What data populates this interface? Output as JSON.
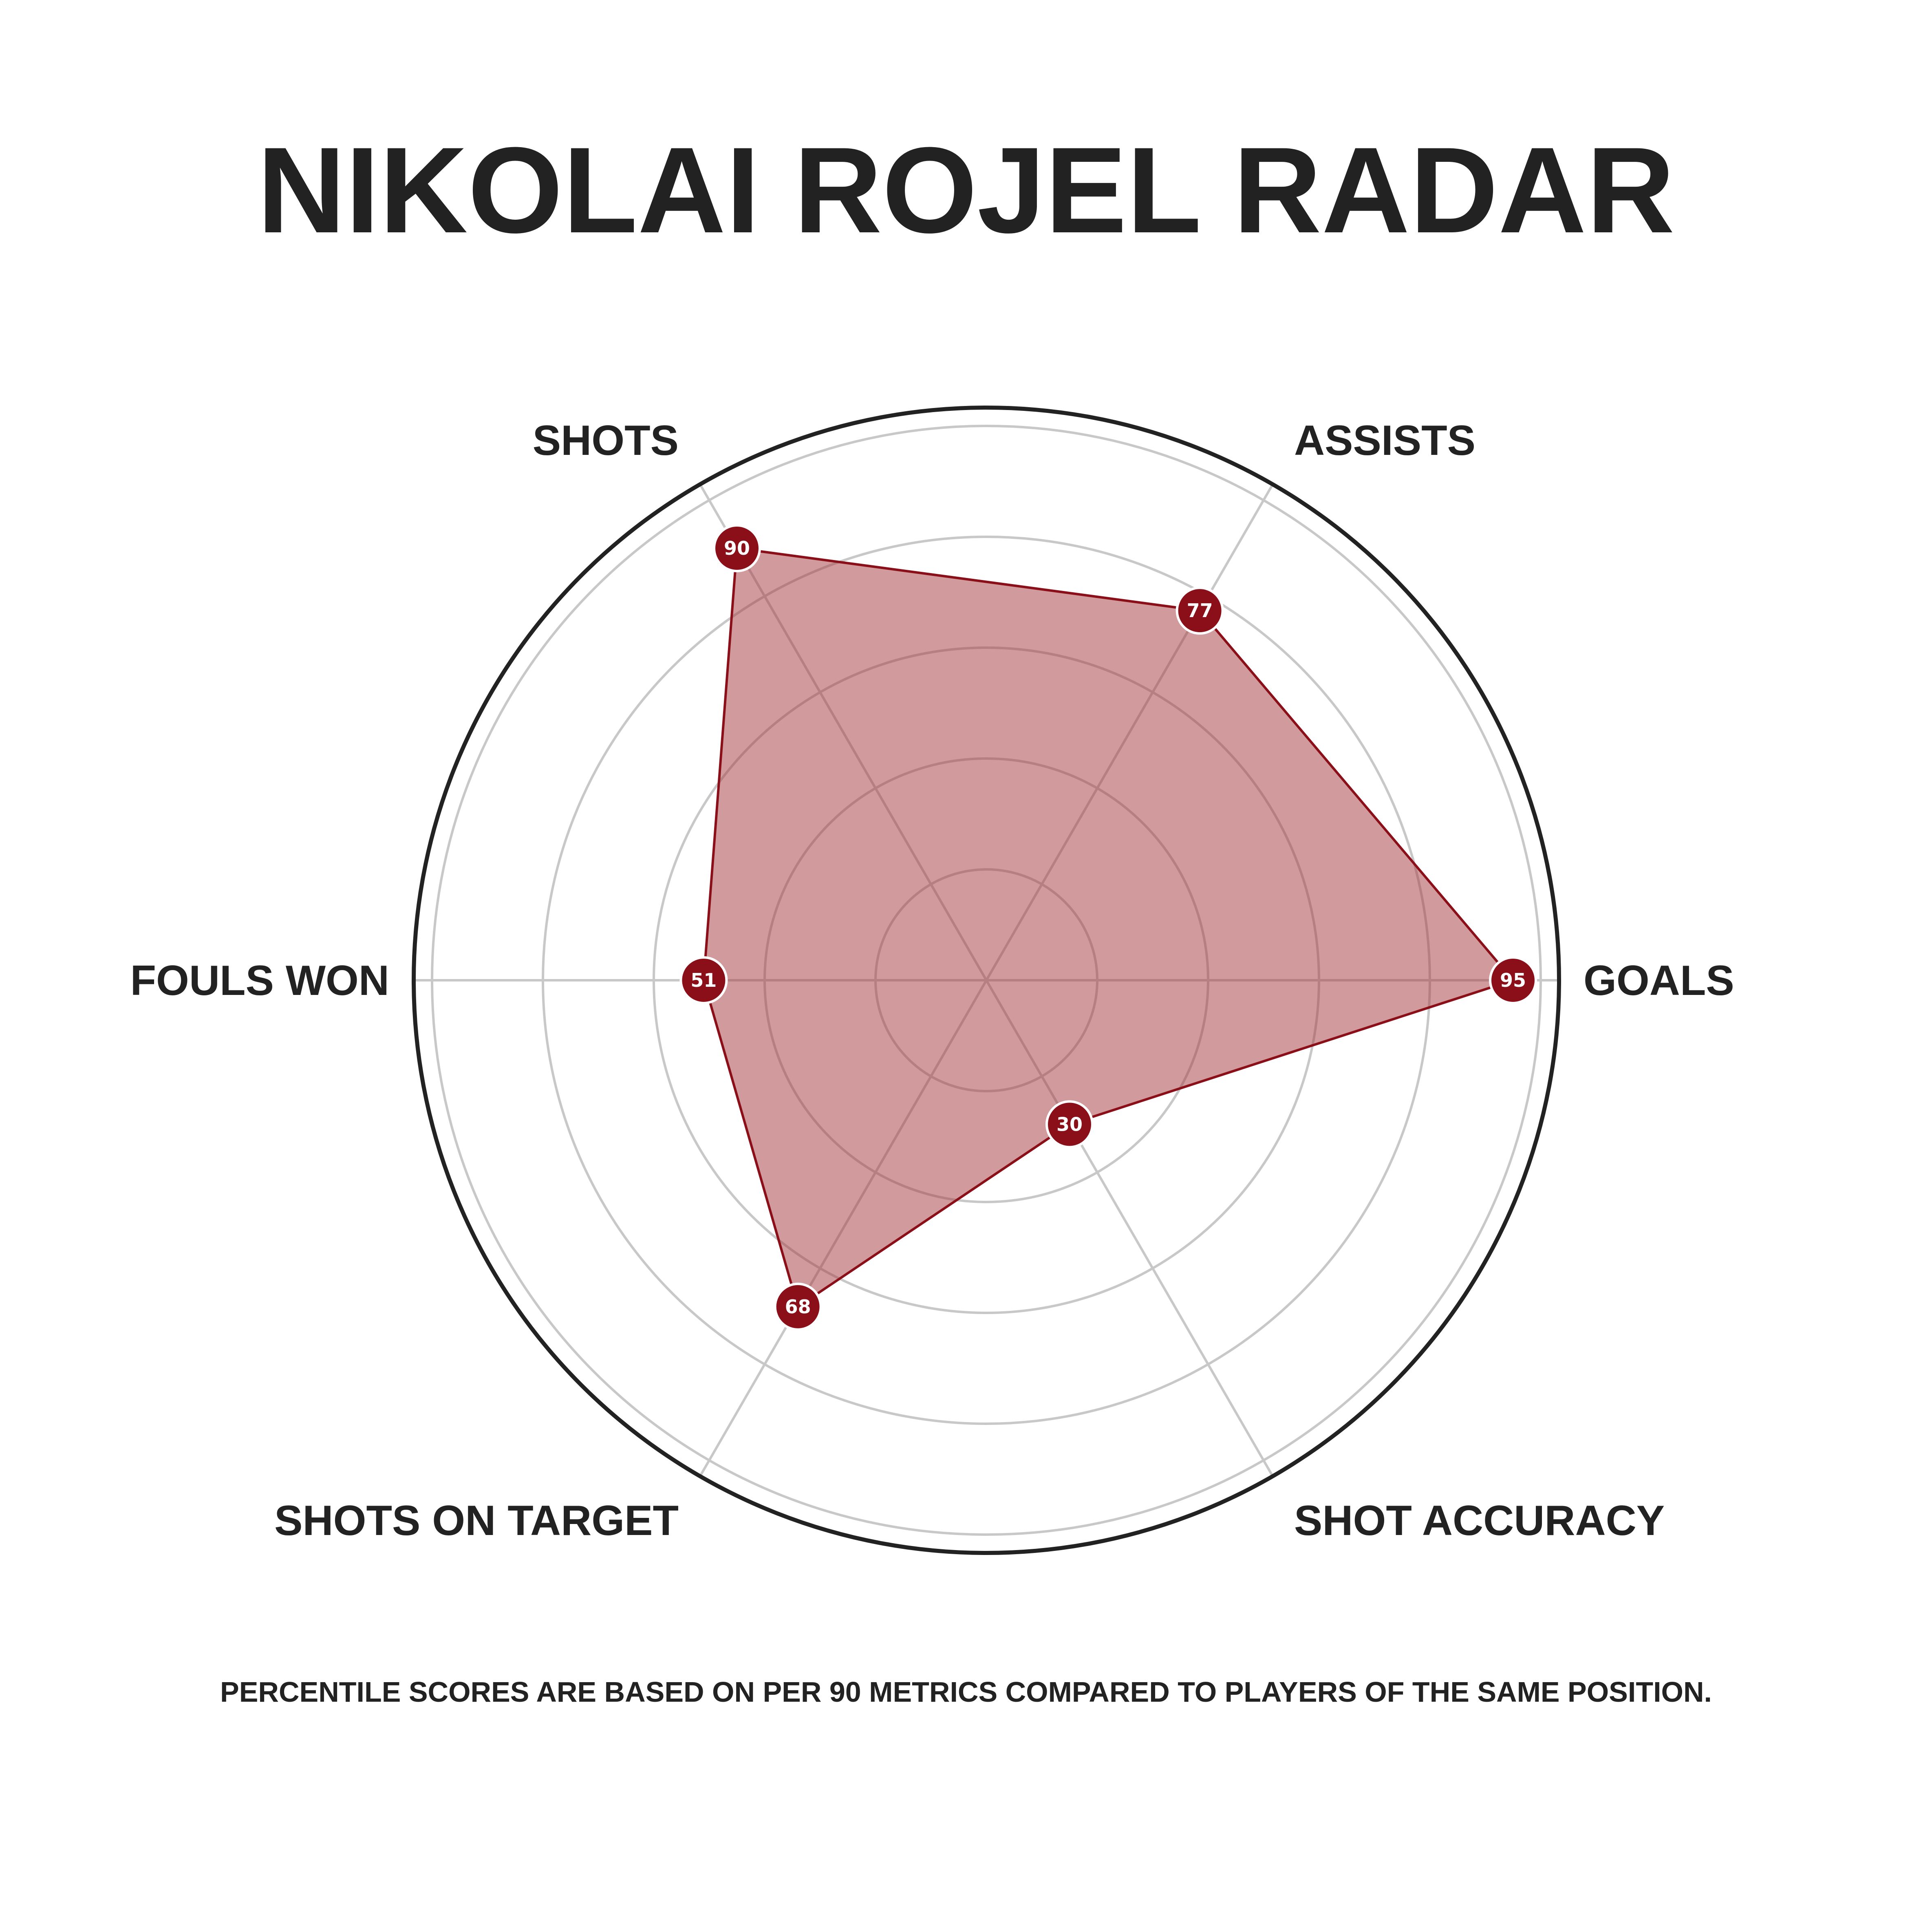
{
  "chart_data": {
    "type": "radar",
    "title": "NIKOLAI ROJEL RADAR",
    "categories": [
      "GOALS",
      "ASSISTS",
      "SHOTS",
      "FOULS WON",
      "SHOTS ON TARGET",
      "SHOT ACCURACY"
    ],
    "values": [
      95,
      77,
      90,
      51,
      68,
      30
    ],
    "value_labels": [
      "95",
      "77",
      "90",
      "51",
      "68",
      "30"
    ],
    "rlim": [
      0,
      100
    ],
    "grid_rings": [
      20,
      40,
      60,
      80,
      100
    ],
    "grid": true,
    "legend": "none",
    "footnote": "PERCENTILE SCORES ARE BASED ON PER 90 METRICS COMPARED TO PLAYERS OF THE SAME POSITION."
  },
  "colors": {
    "series_line": "#8b0f18",
    "series_fill": "#a3353b",
    "marker": "#8b0f18",
    "grid": "#c8c8c8",
    "outer_ring": "#222222",
    "text": "#222222"
  }
}
